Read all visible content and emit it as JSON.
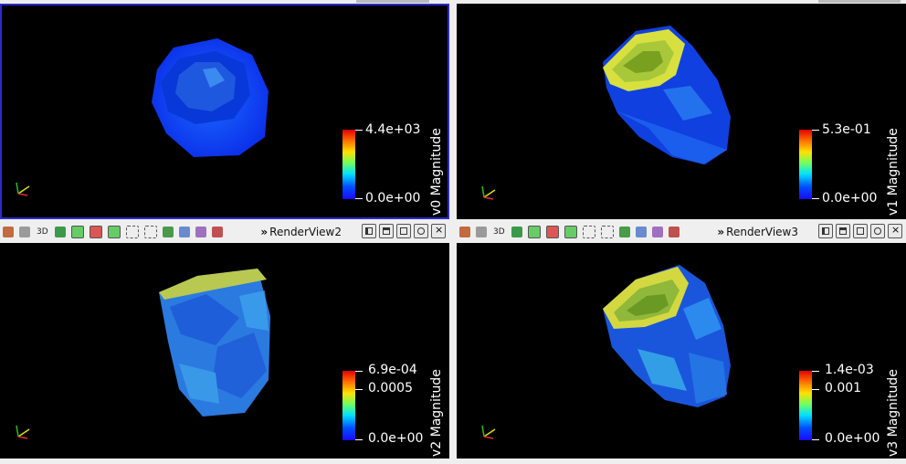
{
  "views": [
    {
      "id": "RenderView1",
      "title": "v0 Magnitude",
      "max_label": "4.4e+03",
      "mid_label": "",
      "min_label": "0.0e+00",
      "active": true
    },
    {
      "id": "RenderView2",
      "title": "v1 Magnitude",
      "max_label": "5.3e-01",
      "mid_label": "",
      "min_label": "0.0e+00",
      "active": false
    },
    {
      "id": "RenderView3",
      "title": "v2 Magnitude",
      "max_label": "6.9e-04",
      "mid_label": "0.0005",
      "min_label": "0.0e+00",
      "active": false
    },
    {
      "id": "RenderView4",
      "title": "v3 Magnitude",
      "max_label": "1.4e-03",
      "mid_label": "0.001",
      "min_label": "0.0e+00",
      "active": false
    }
  ],
  "toolbars": [
    {
      "mode_label": "3D",
      "view_name": "RenderView2"
    },
    {
      "mode_label": "3D",
      "view_name": "RenderView3"
    }
  ],
  "toolbar_icons": [
    "camera-icon",
    "camera-alt-icon",
    "3d-toggle",
    "capture-icon",
    "select-cells-icon",
    "select-points-icon",
    "select-frustum-icon",
    "select-block-icon",
    "interactive-select-icon",
    "hover-points-icon",
    "hover-cells-icon",
    "grow-selection-icon",
    "shrink-selection-icon"
  ],
  "window_buttons": [
    "split-horizontal-icon",
    "split-vertical-icon",
    "maximize-icon",
    "capture-view-icon",
    "close-view-icon"
  ],
  "colors": {
    "active_border": "#2a2ad0",
    "background": "#000000",
    "panel": "#efefef"
  }
}
